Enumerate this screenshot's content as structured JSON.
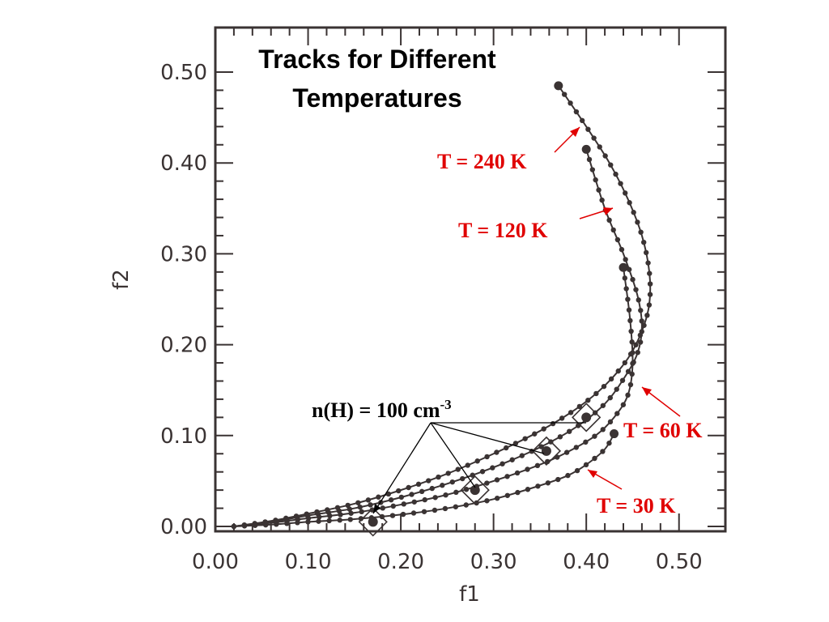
{
  "chart_data": {
    "type": "line",
    "title": [
      "Tracks for Different",
      "Temperatures"
    ],
    "xlabel": "f1",
    "ylabel": "f2",
    "xlim": [
      0.0,
      0.55
    ],
    "ylim": [
      0.0,
      0.53
    ],
    "x_ticks": [
      "0.00",
      "0.10",
      "0.20",
      "0.30",
      "0.40",
      "0.50"
    ],
    "y_ticks": [
      "0.00",
      "0.10",
      "0.20",
      "0.30",
      "0.40",
      "0.50"
    ],
    "x_tick_values": [
      0.0,
      0.1,
      0.2,
      0.3,
      0.4,
      0.5
    ],
    "y_tick_values": [
      0.0,
      0.1,
      0.2,
      0.3,
      0.4,
      0.5
    ],
    "line_color": "#3a3333",
    "annotation_color": "#e00000",
    "series": [
      {
        "x": [
          0.02,
          0.06,
          0.1,
          0.15,
          0.2,
          0.25,
          0.3,
          0.35,
          0.39,
          0.42,
          0.445,
          0.46,
          0.468,
          0.468,
          0.46,
          0.445,
          0.425,
          0.4,
          0.37
        ],
        "y": [
          0.0,
          0.006,
          0.014,
          0.025,
          0.04,
          0.058,
          0.08,
          0.105,
          0.13,
          0.155,
          0.185,
          0.215,
          0.245,
          0.28,
          0.32,
          0.36,
          0.4,
          0.44,
          0.485
        ]
      },
      {
        "x": [
          0.02,
          0.06,
          0.1,
          0.15,
          0.2,
          0.25,
          0.3,
          0.35,
          0.39,
          0.42,
          0.44,
          0.455,
          0.46,
          0.455,
          0.44,
          0.42,
          0.4
        ],
        "y": [
          0.0,
          0.005,
          0.012,
          0.02,
          0.032,
          0.047,
          0.065,
          0.087,
          0.11,
          0.135,
          0.162,
          0.19,
          0.22,
          0.255,
          0.3,
          0.35,
          0.415
        ]
      },
      {
        "x": [
          0.02,
          0.06,
          0.1,
          0.15,
          0.2,
          0.25,
          0.3,
          0.35,
          0.38,
          0.41,
          0.43,
          0.445,
          0.45,
          0.447,
          0.44
        ],
        "y": [
          0.0,
          0.004,
          0.009,
          0.015,
          0.024,
          0.035,
          0.05,
          0.068,
          0.082,
          0.1,
          0.12,
          0.145,
          0.18,
          0.23,
          0.285
        ]
      },
      {
        "x": [
          0.02,
          0.06,
          0.1,
          0.15,
          0.2,
          0.25,
          0.3,
          0.35,
          0.38,
          0.4,
          0.42,
          0.43
        ],
        "y": [
          0.0,
          0.002,
          0.005,
          0.008,
          0.013,
          0.02,
          0.03,
          0.045,
          0.056,
          0.068,
          0.085,
          0.102
        ]
      }
    ],
    "density_markers": [
      {
        "x": 0.17,
        "y": 0.005
      },
      {
        "x": 0.28,
        "y": 0.04
      },
      {
        "x": 0.357,
        "y": 0.083
      },
      {
        "x": 0.4,
        "y": 0.12
      }
    ],
    "annotations": {
      "t240": "T = 240 K",
      "t120": "T = 120 K",
      "t60": "T = 60 K",
      "t30": "T = 30 K",
      "nh_main": "n(H) = 100 cm",
      "nh_sup": "-3"
    }
  }
}
